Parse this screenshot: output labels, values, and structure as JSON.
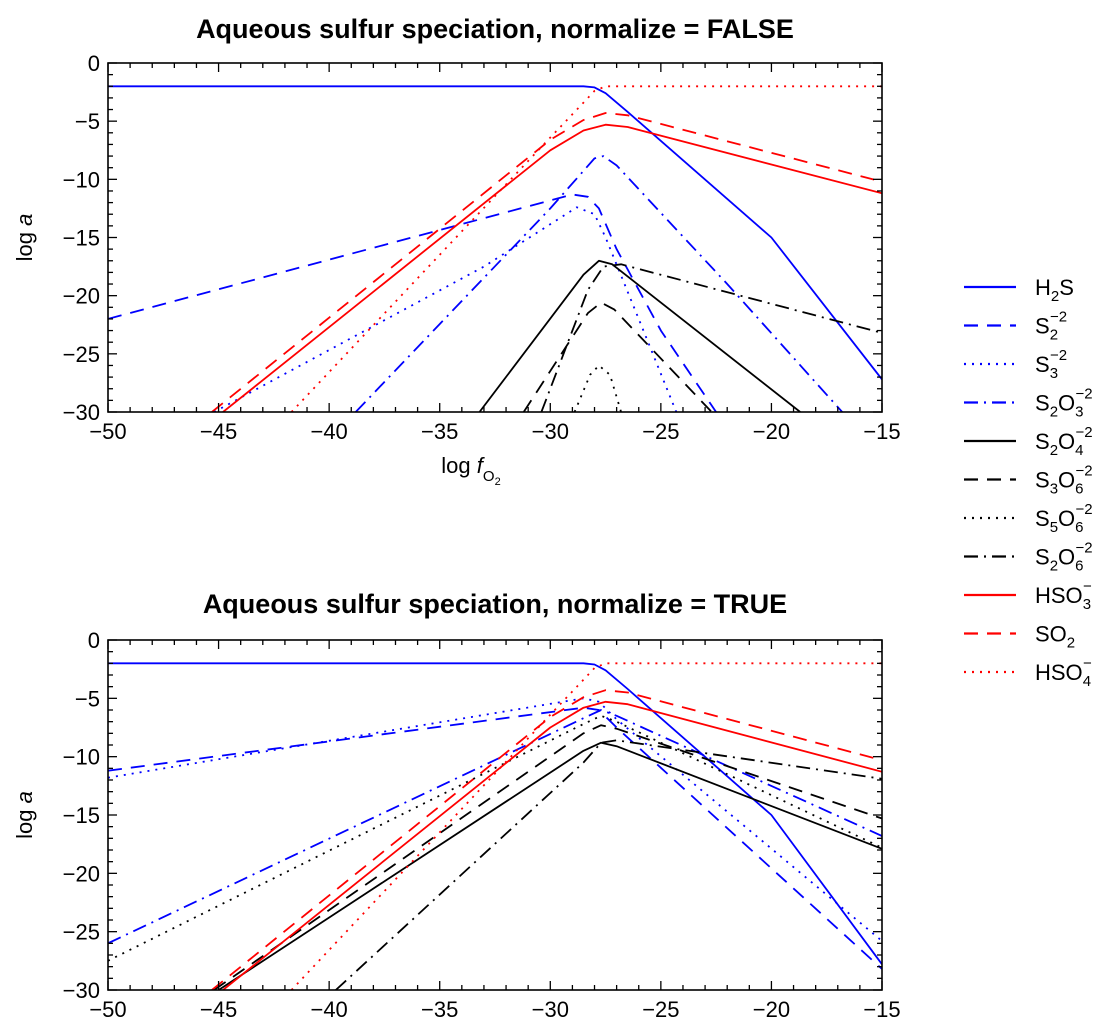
{
  "chart_data": [
    {
      "type": "line",
      "title": "Aqueous sulfur speciation, normalize = FALSE",
      "xlabel": "log f_O2",
      "ylabel": "log a",
      "xlim": [
        -50,
        -15
      ],
      "ylim": [
        -30,
        0
      ],
      "xticks": [
        -50,
        -45,
        -40,
        -35,
        -30,
        -25,
        -20,
        -15
      ],
      "yticks": [
        0,
        -5,
        -10,
        -15,
        -20,
        -25,
        -30
      ],
      "grid": false,
      "series": [
        {
          "name": "H2S",
          "color": "#0000ff",
          "dash": "solid",
          "x": [
            -50,
            -28.5,
            -28,
            -27.5,
            -26.5,
            -20,
            -15
          ],
          "y": [
            -2,
            -2,
            -2.1,
            -2.6,
            -4.2,
            -15,
            -27.2
          ]
        },
        {
          "name": "S2^-2",
          "color": "#0000ff",
          "dash": "dashed",
          "x": [
            -50,
            -29,
            -28.3,
            -27.8,
            -27,
            -25,
            -22.5
          ],
          "y": [
            -22,
            -11.3,
            -11.5,
            -12.5,
            -16,
            -23,
            -30
          ]
        },
        {
          "name": "S3^-2",
          "color": "#0000ff",
          "dash": "dotted",
          "x": [
            -45.2,
            -33,
            -28.8,
            -28,
            -27.5,
            -26,
            -24.3
          ],
          "y": [
            -30,
            -17.5,
            -12.4,
            -13,
            -15,
            -22,
            -30
          ]
        },
        {
          "name": "S2O3^-2",
          "color": "#0000ff",
          "dash": "dashdot",
          "x": [
            -38.8,
            -30,
            -28,
            -27.6,
            -27,
            -22,
            -16.8
          ],
          "y": [
            -30,
            -12.5,
            -8.2,
            -8,
            -8.8,
            -19,
            -30
          ]
        },
        {
          "name": "S2O4^-2",
          "color": "#000000",
          "dash": "solid",
          "x": [
            -33.2,
            -28.5,
            -27.8,
            -27.2,
            -18.7
          ],
          "y": [
            -30,
            -18.2,
            -17,
            -17.3,
            -30
          ]
        },
        {
          "name": "S3O6^-2",
          "color": "#000000",
          "dash": "dashed",
          "x": [
            -31.2,
            -28.3,
            -27.7,
            -27.1,
            -22.7
          ],
          "y": [
            -30,
            -21.5,
            -20.6,
            -21.2,
            -30
          ]
        },
        {
          "name": "S5O6^-2",
          "color": "#000000",
          "dash": "dotted",
          "x": [
            -28.9,
            -28.2,
            -27.8,
            -27.3,
            -26.8
          ],
          "y": [
            -30,
            -26.8,
            -26,
            -26.8,
            -30
          ]
        },
        {
          "name": "S2O6^-2",
          "color": "#000000",
          "dash": "dashdot",
          "x": [
            -30.4,
            -28.3,
            -27.6,
            -26.8,
            -15
          ],
          "y": [
            -30,
            -19.5,
            -17.5,
            -17.3,
            -23.2
          ]
        },
        {
          "name": "HSO3^-",
          "color": "#ff0000",
          "dash": "solid",
          "x": [
            -44.8,
            -30,
            -28.5,
            -27.5,
            -26.5,
            -15
          ],
          "y": [
            -30,
            -7.5,
            -5.8,
            -5.3,
            -5.5,
            -11.2
          ]
        },
        {
          "name": "SO2",
          "color": "#ff0000",
          "dash": "dashed",
          "x": [
            -45.3,
            -30,
            -28.5,
            -27.5,
            -26.5,
            -15
          ],
          "y": [
            -30,
            -6.6,
            -4.9,
            -4.3,
            -4.5,
            -10.2
          ]
        },
        {
          "name": "HSO4^-",
          "color": "#ff0000",
          "dash": "dotted",
          "x": [
            -41.7,
            -30,
            -28.5,
            -28,
            -27.5,
            -15
          ],
          "y": [
            -30,
            -6.4,
            -3.4,
            -2.4,
            -2,
            -2
          ]
        }
      ]
    },
    {
      "type": "line",
      "title": "Aqueous sulfur speciation, normalize = TRUE",
      "xlabel": "log f_O2",
      "ylabel": "log a",
      "xlim": [
        -50,
        -15
      ],
      "ylim": [
        -30,
        0
      ],
      "xticks": [
        -50,
        -45,
        -40,
        -35,
        -30,
        -25,
        -20,
        -15
      ],
      "yticks": [
        0,
        -5,
        -10,
        -15,
        -20,
        -25,
        -30
      ],
      "grid": false,
      "series": [
        {
          "name": "H2S",
          "color": "#0000ff",
          "dash": "solid",
          "x": [
            -50,
            -28.5,
            -28,
            -27.5,
            -26.5,
            -20,
            -15
          ],
          "y": [
            -2,
            -2,
            -2.1,
            -2.6,
            -4.2,
            -15,
            -27.8
          ]
        },
        {
          "name": "S2^-2",
          "color": "#0000ff",
          "dash": "dashed",
          "x": [
            -50,
            -28.5,
            -27.8,
            -27,
            -15
          ],
          "y": [
            -11.2,
            -5.8,
            -6,
            -7.5,
            -28.2
          ]
        },
        {
          "name": "S3^-2",
          "color": "#0000ff",
          "dash": "dotted",
          "x": [
            -50,
            -28.5,
            -27.8,
            -27,
            -15
          ],
          "y": [
            -11.8,
            -5,
            -5.3,
            -6.8,
            -25.8
          ]
        },
        {
          "name": "S2O3^-2",
          "color": "#0000ff",
          "dash": "dashdot",
          "x": [
            -50,
            -28.5,
            -27.7,
            -27,
            -15
          ],
          "y": [
            -26,
            -6.7,
            -6,
            -6.5,
            -16.8
          ]
        },
        {
          "name": "S2O4^-2",
          "color": "#000000",
          "dash": "solid",
          "x": [
            -45,
            -28.5,
            -27.7,
            -27,
            -15
          ],
          "y": [
            -30,
            -9.5,
            -8.8,
            -9.1,
            -17.9
          ]
        },
        {
          "name": "S3O6^-2",
          "color": "#000000",
          "dash": "dashed",
          "x": [
            -45.2,
            -28.5,
            -27.7,
            -27,
            -15
          ],
          "y": [
            -30,
            -8,
            -7.3,
            -7.6,
            -15.3
          ]
        },
        {
          "name": "S5O6^-2",
          "color": "#000000",
          "dash": "dotted",
          "x": [
            -50,
            -28.5,
            -27.7,
            -27,
            -15
          ],
          "y": [
            -27.5,
            -7.2,
            -6.5,
            -7,
            -17.8
          ]
        },
        {
          "name": "S2O6^-2",
          "color": "#000000",
          "dash": "dashdot",
          "x": [
            -39.7,
            -28.5,
            -27.7,
            -27,
            -15
          ],
          "y": [
            -30,
            -10.5,
            -8.8,
            -8.6,
            -11.9
          ]
        },
        {
          "name": "HSO3^-",
          "color": "#ff0000",
          "dash": "solid",
          "x": [
            -44.8,
            -30,
            -28.5,
            -27.5,
            -26.5,
            -15
          ],
          "y": [
            -30,
            -7.5,
            -5.8,
            -5.3,
            -5.5,
            -11.3
          ]
        },
        {
          "name": "SO2",
          "color": "#ff0000",
          "dash": "dashed",
          "x": [
            -45.3,
            -30,
            -28.5,
            -27.5,
            -26.5,
            -15
          ],
          "y": [
            -30,
            -6.6,
            -4.9,
            -4.3,
            -4.5,
            -10.3
          ]
        },
        {
          "name": "HSO4^-",
          "color": "#ff0000",
          "dash": "dotted",
          "x": [
            -41.7,
            -30,
            -28.5,
            -28,
            -27.5,
            -15
          ],
          "y": [
            -30,
            -6.4,
            -3.4,
            -2.4,
            -2,
            -2
          ]
        }
      ]
    }
  ],
  "legend": {
    "placement": "right",
    "entries": [
      {
        "base": "H",
        "sub": "2",
        "rest": "S",
        "color": "#0000ff",
        "dash": "solid"
      },
      {
        "base": "S",
        "sub": "2",
        "sup": "−2",
        "color": "#0000ff",
        "dash": "dashed"
      },
      {
        "base": "S",
        "sub": "3",
        "sup": "−2",
        "color": "#0000ff",
        "dash": "dotted"
      },
      {
        "base": "S",
        "sub": "2",
        "rest": "O",
        "sub2": "3",
        "sup": "−2",
        "color": "#0000ff",
        "dash": "dashdot"
      },
      {
        "base": "S",
        "sub": "2",
        "rest": "O",
        "sub2": "4",
        "sup": "−2",
        "color": "#000000",
        "dash": "solid"
      },
      {
        "base": "S",
        "sub": "3",
        "rest": "O",
        "sub2": "6",
        "sup": "−2",
        "color": "#000000",
        "dash": "dashed"
      },
      {
        "base": "S",
        "sub": "5",
        "rest": "O",
        "sub2": "6",
        "sup": "−2",
        "color": "#000000",
        "dash": "dotted"
      },
      {
        "base": "S",
        "sub": "2",
        "rest": "O",
        "sub2": "6",
        "sup": "−2",
        "color": "#000000",
        "dash": "dashdot"
      },
      {
        "base": "HSO",
        "sub": "3",
        "sup": "−",
        "color": "#ff0000",
        "dash": "solid"
      },
      {
        "base": "SO",
        "sub": "2",
        "color": "#ff0000",
        "dash": "dashed"
      },
      {
        "base": "HSO",
        "sub": "4",
        "sup": "−",
        "color": "#ff0000",
        "dash": "dotted"
      }
    ]
  },
  "labels": {
    "ylabel_text": "log ",
    "ylabel_italic": "a",
    "xlabel_text": "log ",
    "xlabel_italic": "f",
    "xlabel_sub": "O",
    "xlabel_subsub": "2"
  }
}
